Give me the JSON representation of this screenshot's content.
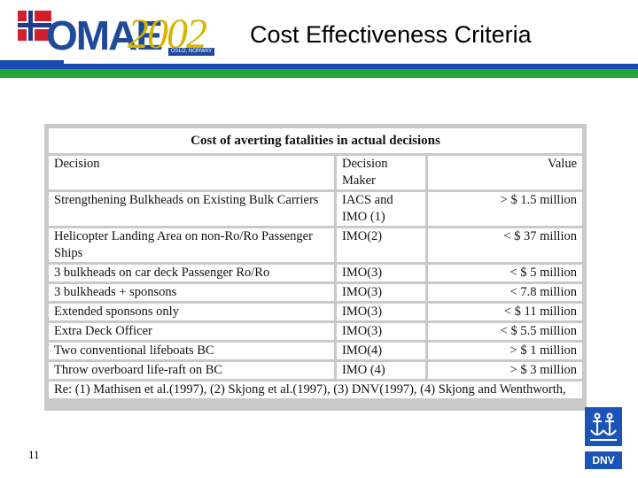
{
  "header": {
    "logo_word": "OMAE",
    "logo_year": "2002",
    "logo_location": "OSLO, NORWAY",
    "title": "Cost Effectiveness Criteria"
  },
  "table": {
    "caption": "Cost of averting fatalities in actual decisions",
    "headers": {
      "decision": "Decision",
      "maker": "Decision Maker",
      "value": "Value"
    },
    "rows": [
      {
        "decision": "Strengthening Bulkheads on Existing Bulk Carriers",
        "maker": "IACS and IMO (1)",
        "value": "> $ 1.5 million"
      },
      {
        "decision": "Helicopter Landing Area on non-Ro/Ro Passenger Ships",
        "maker": "IMO(2)",
        "value": "< $ 37 million"
      },
      {
        "decision": "3 bulkheads on car deck Passenger Ro/Ro",
        "maker": "IMO(3)",
        "value": "< $ 5 million"
      },
      {
        "decision": "3 bulkheads + sponsons",
        "maker": "IMO(3)",
        "value": "< 7.8 million"
      },
      {
        "decision": "Extended sponsons only",
        "maker": "IMO(3)",
        "value": "< $ 11 million"
      },
      {
        "decision": "Extra Deck Officer",
        "maker": "IMO(3)",
        "value": "< $ 5.5 million"
      },
      {
        "decision": "Two conventional lifeboats BC",
        "maker": "IMO(4)",
        "value": "> $ 1 million"
      },
      {
        "decision": "Throw overboard life-raft on BC",
        "maker": "IMO (4)",
        "value": "> $ 3 million"
      }
    ],
    "footnote": "Re: (1) Mathisen et al.(1997), (2) Skjong et al.(1997), (3) DNV(1997), (4) Skjong and Wenthworth,"
  },
  "footer": {
    "page_number": "11",
    "dnv_label": "DNV"
  },
  "colors": {
    "header_blue": "#1a4bb0",
    "header_green": "#22a63a",
    "dnv_blue": "#1a54b8",
    "logo_gold": "#d8b400"
  }
}
